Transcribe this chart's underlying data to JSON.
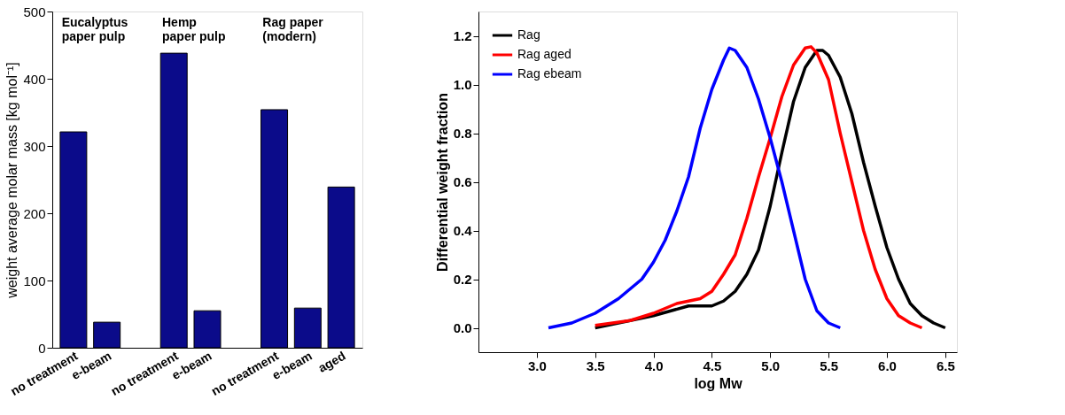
{
  "chart_data": [
    {
      "type": "bar",
      "ylabel": "weight average molar mass [kg mol⁻¹]",
      "categories": [
        "no treatment",
        "e-beam",
        null,
        "no treatment",
        "e-beam",
        null,
        "no treatment",
        "e-beam",
        "aged"
      ],
      "values": [
        321,
        38,
        null,
        438,
        55,
        null,
        354,
        59,
        239
      ],
      "color": "#0b0b8a",
      "ylim": [
        0,
        500
      ],
      "yticks": [
        0,
        100,
        200,
        300,
        400,
        500
      ],
      "grid": false,
      "annotations": [
        "Eucalyptus\npaper pulp",
        "Hemp\npaper pulp",
        "Rag paper\n(modern)"
      ]
    },
    {
      "type": "line",
      "xlabel": "log Mw",
      "ylabel": "Differential weight fraction",
      "xlim": [
        2.5,
        6.6
      ],
      "ylim": [
        -0.1,
        1.3
      ],
      "xticks": [
        {
          "value": 3,
          "label": "3.0"
        },
        3.5,
        {
          "value": 4,
          "label": "4.0"
        },
        4.5,
        {
          "value": 5,
          "label": "5.0"
        },
        5.5,
        {
          "value": 6,
          "label": "6.0"
        },
        6.5
      ],
      "yticks": [
        {
          "value": 0,
          "label": "0.0"
        },
        0.2,
        0.4,
        0.6,
        0.8,
        {
          "value": 1,
          "label": "1.0"
        },
        1.2
      ],
      "grid": false,
      "legend": "top left",
      "marker": "none",
      "line_style": "solid",
      "series": [
        {
          "name": "Rag",
          "color": "#000000",
          "x": [
            3.5,
            4.0,
            4.3,
            4.5,
            4.6,
            4.7,
            4.8,
            4.9,
            5.0,
            5.1,
            5.2,
            5.3,
            5.4,
            5.45,
            5.5,
            5.6,
            5.7,
            5.8,
            5.9,
            6.0,
            6.1,
            6.2,
            6.3,
            6.4,
            6.5
          ],
          "values": [
            0,
            0.05,
            0.09,
            0.09,
            0.11,
            0.15,
            0.22,
            0.32,
            0.5,
            0.72,
            0.93,
            1.07,
            1.14,
            1.14,
            1.12,
            1.03,
            0.88,
            0.68,
            0.5,
            0.33,
            0.2,
            0.1,
            0.05,
            0.02,
            0
          ]
        },
        {
          "name": "Rag aged",
          "color": "#ff0000",
          "x": [
            3.5,
            3.8,
            4.0,
            4.2,
            4.4,
            4.5,
            4.6,
            4.7,
            4.8,
            4.9,
            5.0,
            5.1,
            5.2,
            5.3,
            5.35,
            5.4,
            5.5,
            5.6,
            5.7,
            5.8,
            5.9,
            6.0,
            6.1,
            6.2,
            6.3
          ],
          "values": [
            0.01,
            0.03,
            0.06,
            0.1,
            0.12,
            0.15,
            0.22,
            0.3,
            0.45,
            0.62,
            0.78,
            0.95,
            1.08,
            1.15,
            1.155,
            1.13,
            1.02,
            0.8,
            0.6,
            0.4,
            0.24,
            0.12,
            0.05,
            0.02,
            0
          ]
        },
        {
          "name": "Rag ebeam",
          "color": "#0000ff",
          "x": [
            3.1,
            3.3,
            3.5,
            3.7,
            3.9,
            4.0,
            4.1,
            4.2,
            4.3,
            4.4,
            4.5,
            4.6,
            4.65,
            4.7,
            4.8,
            4.9,
            5.0,
            5.1,
            5.2,
            5.3,
            5.4,
            5.5,
            5.6
          ],
          "values": [
            0,
            0.02,
            0.06,
            0.12,
            0.2,
            0.27,
            0.36,
            0.48,
            0.62,
            0.82,
            0.98,
            1.1,
            1.15,
            1.14,
            1.07,
            0.94,
            0.78,
            0.6,
            0.4,
            0.2,
            0.07,
            0.02,
            0
          ]
        }
      ]
    }
  ]
}
